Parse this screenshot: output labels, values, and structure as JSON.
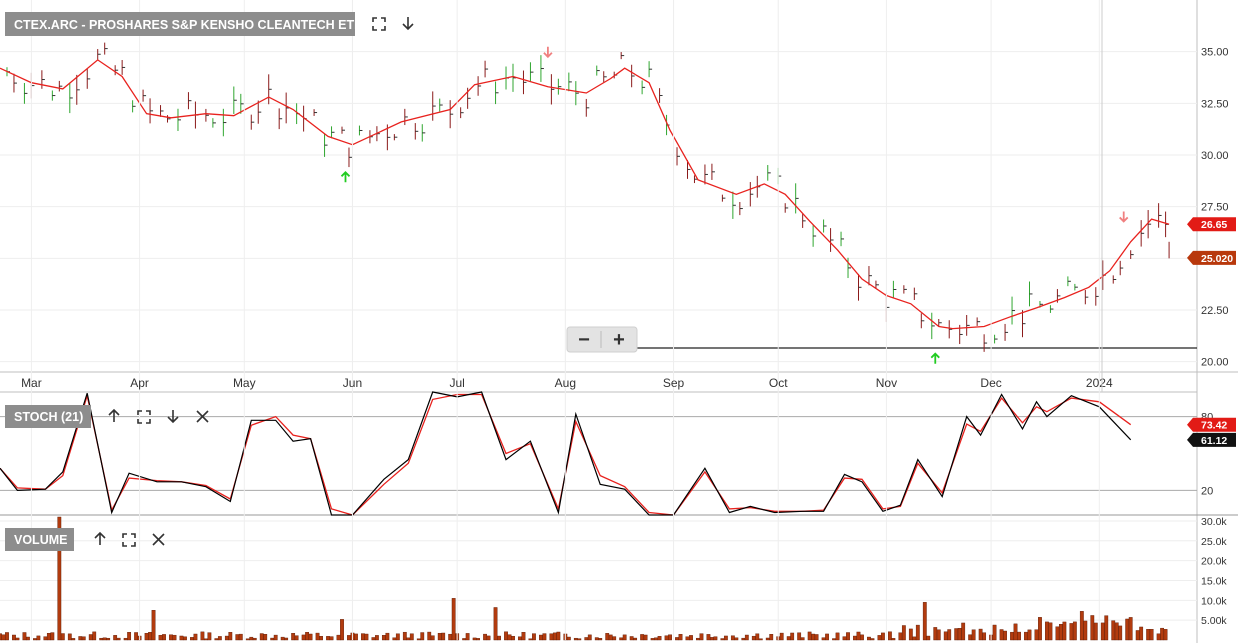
{
  "panels": {
    "price": {
      "title": "CTEX.ARC - PROSHARES S&P KENSHO CLEANTECH ETF",
      "y_ticks": [
        "35.00",
        "32.50",
        "30.00",
        "27.50",
        "25.00",
        "22.50",
        "20.00"
      ],
      "ma_tag": "26.65",
      "last_tag": "25.020",
      "zoom_out": "−",
      "zoom_in": "+"
    },
    "stoch": {
      "title": "STOCH (21)",
      "y_ticks": [
        "80",
        "20"
      ],
      "tag_red": "73.42",
      "tag_black": "61.12"
    },
    "volume": {
      "title": "VOLUME",
      "y_ticks": [
        "30.0k",
        "25.0k",
        "20.0k",
        "15.0k",
        "10.0k",
        "5.00k"
      ]
    }
  },
  "x_labels": [
    "Mar",
    "Apr",
    "May",
    "Jun",
    "Jul",
    "Aug",
    "Sep",
    "Oct",
    "Nov",
    "Dec",
    "2024"
  ],
  "icons": {
    "price": [
      "expand-icon",
      "arrow-down-icon"
    ],
    "stoch": [
      "arrow-up-icon",
      "expand-icon",
      "arrow-down-icon",
      "close-icon"
    ],
    "volume": [
      "arrow-up-icon",
      "expand-icon",
      "close-icon"
    ]
  },
  "colors": {
    "ma": "#e8221e",
    "stoch_k": "#000000",
    "stoch_d": "#e8221e",
    "bar_up": "#2fa62f",
    "bar_down": "#8b1a1a",
    "volume": "#b23b0e",
    "tag_red": "#e21b16",
    "tag_vol": "#b8380c",
    "signal_buy": "#22cc22",
    "signal_sell": "#f08080"
  },
  "chart_data": [
    {
      "type": "line",
      "panel": "price",
      "title": "CTEX.ARC - PROSHARES S&P KENSHO CLEANTECH ETF",
      "ylim": [
        19.5,
        37.5
      ],
      "moving_average_series": [
        [
          "2023-02-20",
          34.2
        ],
        [
          "2023-03-01",
          33.5
        ],
        [
          "2023-03-10",
          33.2
        ],
        [
          "2023-03-20",
          34.6
        ],
        [
          "2023-03-27",
          33.8
        ],
        [
          "2023-04-03",
          32.0
        ],
        [
          "2023-04-10",
          31.8
        ],
        [
          "2023-04-20",
          32.0
        ],
        [
          "2023-04-28",
          31.9
        ],
        [
          "2023-05-08",
          32.8
        ],
        [
          "2023-05-15",
          32.2
        ],
        [
          "2023-05-25",
          30.9
        ],
        [
          "2023-06-01",
          30.5
        ],
        [
          "2023-06-15",
          31.6
        ],
        [
          "2023-06-29",
          32.2
        ],
        [
          "2023-07-06",
          33.4
        ],
        [
          "2023-07-17",
          33.8
        ],
        [
          "2023-07-27",
          33.3
        ],
        [
          "2023-08-07",
          33.0
        ],
        [
          "2023-08-14",
          33.7
        ],
        [
          "2023-08-18",
          34.2
        ],
        [
          "2023-08-25",
          33.5
        ],
        [
          "2023-08-31",
          31.2
        ],
        [
          "2023-09-08",
          28.8
        ],
        [
          "2023-09-19",
          28.1
        ],
        [
          "2023-09-27",
          28.6
        ],
        [
          "2023-10-03",
          28.1
        ],
        [
          "2023-10-10",
          26.8
        ],
        [
          "2023-10-18",
          25.4
        ],
        [
          "2023-10-25",
          24.0
        ],
        [
          "2023-11-01",
          23.2
        ],
        [
          "2023-11-08",
          22.8
        ],
        [
          "2023-11-16",
          21.7
        ],
        [
          "2023-11-20",
          21.6
        ],
        [
          "2023-11-29",
          21.7
        ],
        [
          "2023-12-07",
          22.2
        ],
        [
          "2023-12-14",
          22.6
        ],
        [
          "2023-12-22",
          23.1
        ],
        [
          "2023-12-29",
          23.6
        ],
        [
          "2024-01-04",
          24.4
        ],
        [
          "2024-01-10",
          25.8
        ],
        [
          "2024-01-16",
          26.9
        ],
        [
          "2024-01-21",
          26.65
        ]
      ],
      "last_price": 25.02,
      "moving_average_last": 26.65,
      "signals": [
        {
          "date": "2023-07-27",
          "type": "sell"
        },
        {
          "date": "2023-05-30",
          "type": "buy"
        },
        {
          "date": "2023-11-15",
          "type": "buy"
        },
        {
          "date": "2024-01-08",
          "type": "sell"
        }
      ]
    },
    {
      "type": "line",
      "panel": "stoch",
      "title": "STOCH (21)",
      "ylim": [
        0,
        100
      ],
      "series": [
        {
          "name": "%K",
          "values": [
            [
              "2023-02-20",
              38
            ],
            [
              "2023-02-25",
              20
            ],
            [
              "2023-03-05",
              21
            ],
            [
              "2023-03-10",
              35
            ],
            [
              "2023-03-17",
              99
            ],
            [
              "2023-03-24",
              2
            ],
            [
              "2023-03-29",
              34
            ],
            [
              "2023-04-06",
              27
            ],
            [
              "2023-04-13",
              27
            ],
            [
              "2023-04-20",
              23
            ],
            [
              "2023-04-27",
              11
            ],
            [
              "2023-05-03",
              77
            ],
            [
              "2023-05-10",
              77
            ],
            [
              "2023-05-15",
              60
            ],
            [
              "2023-05-20",
              62
            ],
            [
              "2023-05-26",
              0
            ],
            [
              "2023-06-01",
              0
            ],
            [
              "2023-06-10",
              29
            ],
            [
              "2023-06-17",
              45
            ],
            [
              "2023-06-24",
              100
            ],
            [
              "2023-07-01",
              96
            ],
            [
              "2023-07-08",
              100
            ],
            [
              "2023-07-15",
              45
            ],
            [
              "2023-07-22",
              60
            ],
            [
              "2023-07-30",
              2
            ],
            [
              "2023-08-04",
              82
            ],
            [
              "2023-08-11",
              25
            ],
            [
              "2023-08-18",
              21
            ],
            [
              "2023-08-25",
              0
            ],
            [
              "2023-09-01",
              0
            ],
            [
              "2023-09-10",
              38
            ],
            [
              "2023-09-17",
              2
            ],
            [
              "2023-09-23",
              7
            ],
            [
              "2023-09-30",
              2
            ],
            [
              "2023-10-08",
              3
            ],
            [
              "2023-10-14",
              3
            ],
            [
              "2023-10-20",
              33
            ],
            [
              "2023-10-25",
              27
            ],
            [
              "2023-10-31",
              3
            ],
            [
              "2023-11-05",
              8
            ],
            [
              "2023-11-10",
              45
            ],
            [
              "2023-11-17",
              15
            ],
            [
              "2023-11-24",
              80
            ],
            [
              "2023-11-28",
              65
            ],
            [
              "2023-12-04",
              98
            ],
            [
              "2023-12-10",
              70
            ],
            [
              "2023-12-14",
              92
            ],
            [
              "2023-12-17",
              80
            ],
            [
              "2023-12-24",
              97
            ],
            [
              "2024-01-01",
              88
            ],
            [
              "2024-01-10",
              61.12
            ]
          ]
        },
        {
          "name": "%D",
          "values": [
            [
              "2023-02-20",
              38
            ],
            [
              "2023-02-25",
              22
            ],
            [
              "2023-03-05",
              21
            ],
            [
              "2023-03-10",
              32
            ],
            [
              "2023-03-17",
              97
            ],
            [
              "2023-03-24",
              4
            ],
            [
              "2023-03-29",
              30
            ],
            [
              "2023-04-06",
              28
            ],
            [
              "2023-04-13",
              27
            ],
            [
              "2023-04-20",
              24
            ],
            [
              "2023-04-27",
              13
            ],
            [
              "2023-05-03",
              73
            ],
            [
              "2023-05-10",
              80
            ],
            [
              "2023-05-15",
              65
            ],
            [
              "2023-05-20",
              62
            ],
            [
              "2023-05-26",
              5
            ],
            [
              "2023-06-01",
              0
            ],
            [
              "2023-06-10",
              25
            ],
            [
              "2023-06-17",
              42
            ],
            [
              "2023-06-24",
              94
            ],
            [
              "2023-07-01",
              98
            ],
            [
              "2023-07-08",
              98
            ],
            [
              "2023-07-15",
              50
            ],
            [
              "2023-07-22",
              58
            ],
            [
              "2023-07-30",
              5
            ],
            [
              "2023-08-04",
              76
            ],
            [
              "2023-08-11",
              32
            ],
            [
              "2023-08-18",
              23
            ],
            [
              "2023-08-25",
              2
            ],
            [
              "2023-09-01",
              0
            ],
            [
              "2023-09-10",
              35
            ],
            [
              "2023-09-17",
              5
            ],
            [
              "2023-09-23",
              6
            ],
            [
              "2023-09-30",
              3
            ],
            [
              "2023-10-08",
              3
            ],
            [
              "2023-10-14",
              4
            ],
            [
              "2023-10-20",
              30
            ],
            [
              "2023-10-25",
              29
            ],
            [
              "2023-10-31",
              5
            ],
            [
              "2023-11-05",
              7
            ],
            [
              "2023-11-10",
              42
            ],
            [
              "2023-11-17",
              18
            ],
            [
              "2023-11-24",
              74
            ],
            [
              "2023-11-28",
              68
            ],
            [
              "2023-12-04",
              95
            ],
            [
              "2023-12-10",
              75
            ],
            [
              "2023-12-14",
              88
            ],
            [
              "2023-12-17",
              84
            ],
            [
              "2023-12-24",
              95
            ],
            [
              "2024-01-01",
              92
            ],
            [
              "2024-01-10",
              73.42
            ]
          ]
        }
      ]
    },
    {
      "type": "bar",
      "panel": "volume",
      "title": "VOLUME",
      "ylim": [
        0,
        31000
      ],
      "highlights": [
        {
          "date": "2023-03-10",
          "value": 31000
        },
        {
          "date": "2023-04-06",
          "value": 7500
        },
        {
          "date": "2023-05-30",
          "value": 5200
        },
        {
          "date": "2023-06-30",
          "value": 10500
        },
        {
          "date": "2023-07-12",
          "value": 8200
        },
        {
          "date": "2023-11-13",
          "value": 9500
        },
        {
          "date": "2023-12-29",
          "value": 4800
        }
      ]
    }
  ]
}
